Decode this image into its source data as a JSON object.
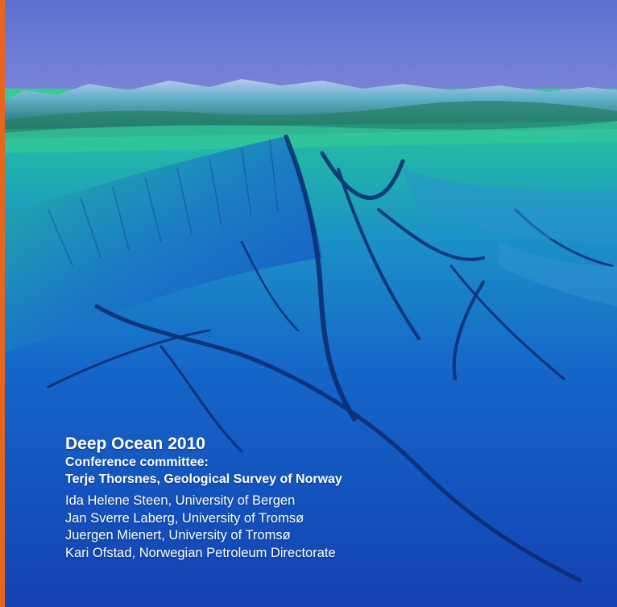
{
  "cover": {
    "title": "Deep Ocean 2010",
    "committee_label": "Conference committee:",
    "chair": "Terje Thorsnes, Geological Survey of Norway",
    "members": [
      "Ida Helene Steen, University of Bergen",
      "Jan Sverre Laberg, University of Tromsø",
      "Juergen Mienert, University of Tromsø",
      "Kari Ofstad, Norwegian Petroleum Directorate"
    ]
  },
  "colors": {
    "accent": "#e8651f",
    "sky": "#5f74d2",
    "shelf": "#2fcf8e",
    "deep": "#1446b8",
    "text": "#ffffff"
  }
}
